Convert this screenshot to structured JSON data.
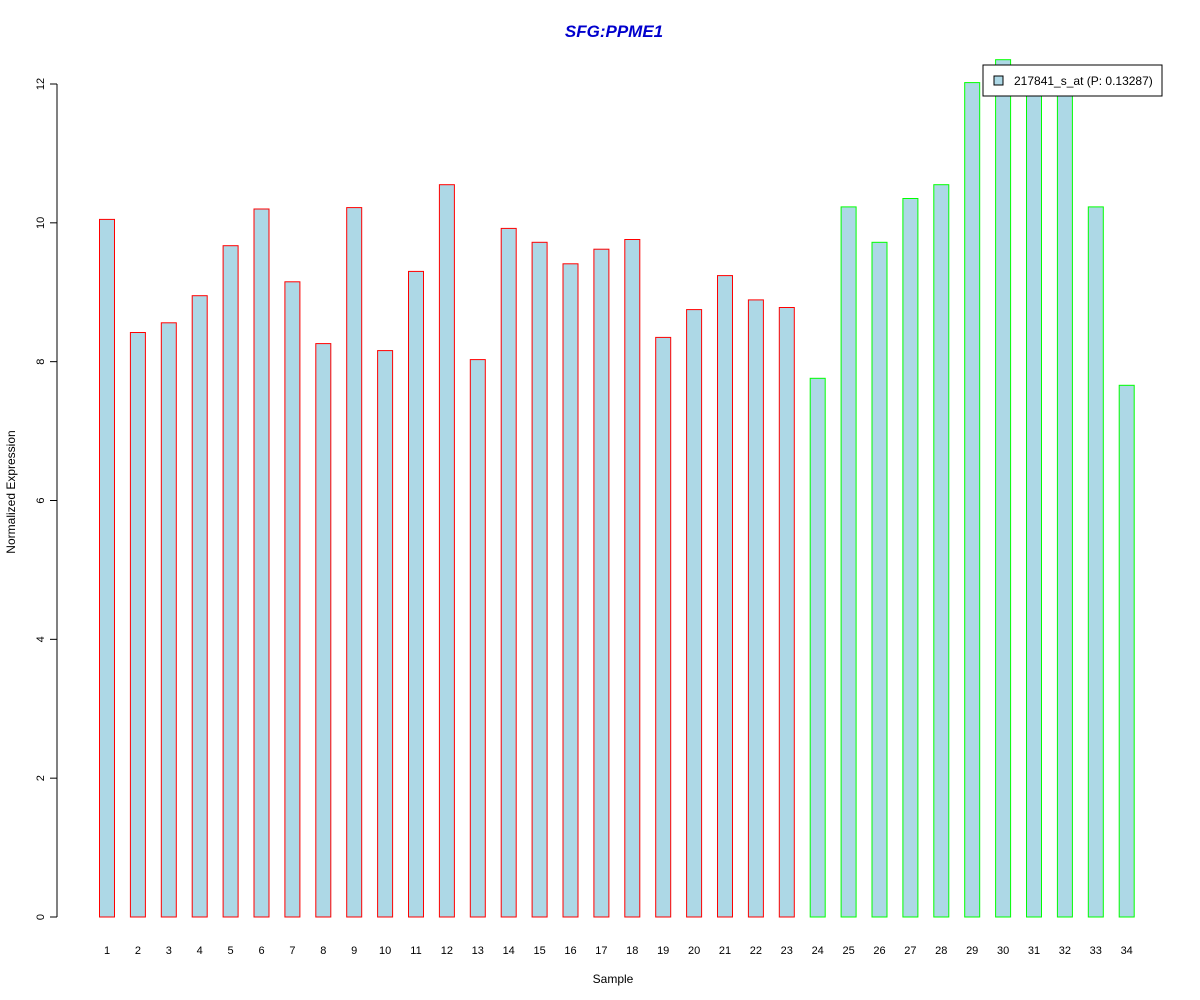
{
  "chart_data": {
    "type": "bar",
    "title": "SFG:PPME1",
    "xlabel": "Sample",
    "ylabel": "Normalized Expression",
    "categories": [
      "1",
      "2",
      "3",
      "4",
      "5",
      "6",
      "7",
      "8",
      "9",
      "10",
      "11",
      "12",
      "13",
      "14",
      "15",
      "16",
      "17",
      "18",
      "19",
      "20",
      "21",
      "22",
      "23",
      "24",
      "25",
      "26",
      "27",
      "28",
      "29",
      "30",
      "31",
      "32",
      "33",
      "34"
    ],
    "values": [
      10.05,
      8.42,
      8.56,
      8.95,
      9.67,
      10.2,
      9.15,
      8.26,
      10.22,
      8.16,
      9.3,
      10.55,
      8.03,
      9.92,
      9.72,
      9.41,
      9.62,
      9.76,
      8.35,
      8.75,
      9.24,
      8.89,
      8.78,
      7.76,
      10.23,
      9.72,
      10.35,
      10.55,
      12.02,
      12.35,
      12.05,
      12.05,
      10.23,
      7.66
    ],
    "groups": [
      "red",
      "red",
      "red",
      "red",
      "red",
      "red",
      "red",
      "red",
      "red",
      "red",
      "red",
      "red",
      "red",
      "red",
      "red",
      "red",
      "red",
      "red",
      "red",
      "red",
      "red",
      "red",
      "red",
      "green",
      "green",
      "green",
      "green",
      "green",
      "green",
      "green",
      "green",
      "green",
      "green",
      "green"
    ],
    "yticks": [
      0,
      2,
      4,
      6,
      8,
      10,
      12
    ],
    "ylim": [
      0,
      12
    ],
    "legend": {
      "label": "217841_s_at (P: 0.13287)",
      "position": "top-right"
    },
    "grid": false,
    "colors": {
      "bar_fill": "#add8e6",
      "border_red": "#ff0000",
      "border_green": "#00ff00",
      "title": "#0000cd"
    }
  }
}
